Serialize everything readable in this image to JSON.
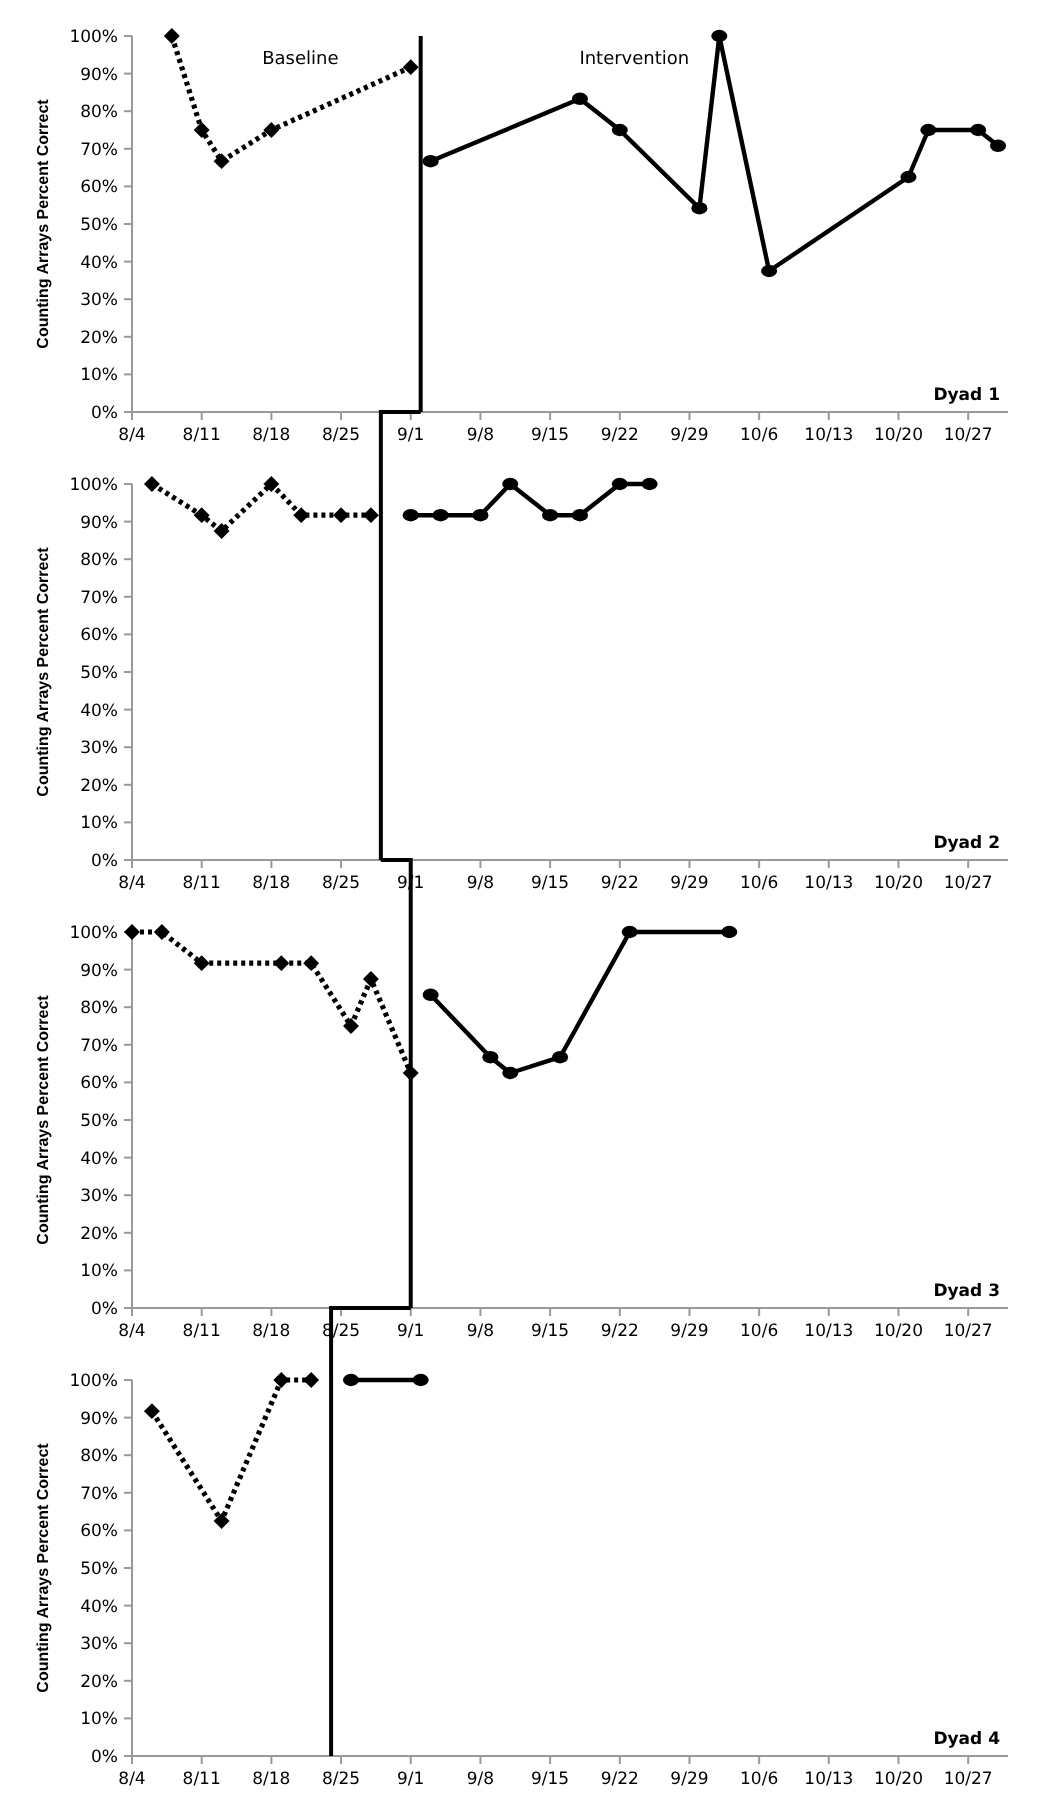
{
  "chart_data": [
    {
      "type": "line",
      "title": "Dyad 1",
      "ylabel": "Counting Arrays Percent Correct",
      "annotations": [
        "Baseline",
        "Intervention"
      ],
      "xlim": [
        "--08-04",
        "--10-31"
      ],
      "xticks": [
        {
          "value": "--08-04",
          "label": "8/4"
        },
        {
          "value": "--08-11",
          "label": "8/11"
        },
        {
          "value": "--08-18",
          "label": "8/18"
        },
        {
          "value": "--08-25",
          "label": "8/25"
        },
        {
          "value": "--09-01",
          "label": "9/1"
        },
        {
          "value": "--09-08",
          "label": "9/8"
        },
        {
          "value": "--09-15",
          "label": "9/15"
        },
        {
          "value": "--09-22",
          "label": "9/22"
        },
        {
          "value": "--09-29",
          "label": "9/29"
        },
        {
          "value": "--10-06",
          "label": "10/6"
        },
        {
          "value": "--10-13",
          "label": "10/13"
        },
        {
          "value": "--10-20",
          "label": "10/20"
        },
        {
          "value": "--10-27",
          "label": "10/27"
        }
      ],
      "ylim": [
        0,
        100
      ],
      "yticks": [
        {
          "value": 0,
          "label": "0%"
        },
        {
          "value": 10,
          "label": "10%"
        },
        {
          "value": 20,
          "label": "20%"
        },
        {
          "value": 30,
          "label": "30%"
        },
        {
          "value": 40,
          "label": "40%"
        },
        {
          "value": 50,
          "label": "50%"
        },
        {
          "value": 60,
          "label": "60%"
        },
        {
          "value": 70,
          "label": "70%"
        },
        {
          "value": 80,
          "label": "80%"
        },
        {
          "value": 90,
          "label": "90%"
        },
        {
          "value": 100,
          "label": "100%"
        }
      ],
      "ref_lines": [
        {
          "axis": "x",
          "value": "--09-02",
          "color": "#000000",
          "line_style": "solid"
        }
      ],
      "series": [
        {
          "color": "#000000",
          "line_style": "dotted",
          "marker": "diamond",
          "x": [
            "--08-08",
            "--08-11",
            "--08-13",
            "--08-18",
            "--09-01"
          ],
          "values": [
            100,
            75,
            66.7,
            75,
            91.7
          ]
        },
        {
          "color": "#000000",
          "line_style": "solid",
          "marker": "circle",
          "x": [
            "--09-03",
            "--09-18",
            "--09-22",
            "--09-30",
            "--10-02",
            "--10-07",
            "--10-21",
            "--10-23",
            "--10-28",
            "--10-30"
          ],
          "values": [
            66.7,
            83.3,
            75,
            54.2,
            100,
            37.5,
            62.5,
            75,
            75,
            70.8
          ]
        }
      ]
    },
    {
      "type": "line",
      "title": "Dyad 2",
      "ylabel": "Counting Arrays Percent Correct",
      "xlim": [
        "--08-04",
        "--10-31"
      ],
      "xticks": [
        {
          "value": "--08-04",
          "label": "8/4"
        },
        {
          "value": "--08-11",
          "label": "8/11"
        },
        {
          "value": "--08-18",
          "label": "8/18"
        },
        {
          "value": "--08-25",
          "label": "8/25"
        },
        {
          "value": "--09-01",
          "label": "9/1"
        },
        {
          "value": "--09-08",
          "label": "9/8"
        },
        {
          "value": "--09-15",
          "label": "9/15"
        },
        {
          "value": "--09-22",
          "label": "9/22"
        },
        {
          "value": "--09-29",
          "label": "9/29"
        },
        {
          "value": "--10-06",
          "label": "10/6"
        },
        {
          "value": "--10-13",
          "label": "10/13"
        },
        {
          "value": "--10-20",
          "label": "10/20"
        },
        {
          "value": "--10-27",
          "label": "10/27"
        }
      ],
      "ylim": [
        0,
        100
      ],
      "yticks": [
        {
          "value": 0,
          "label": "0%"
        },
        {
          "value": 10,
          "label": "10%"
        },
        {
          "value": 20,
          "label": "20%"
        },
        {
          "value": 30,
          "label": "30%"
        },
        {
          "value": 40,
          "label": "40%"
        },
        {
          "value": 50,
          "label": "50%"
        },
        {
          "value": 60,
          "label": "60%"
        },
        {
          "value": 70,
          "label": "70%"
        },
        {
          "value": 80,
          "label": "80%"
        },
        {
          "value": 90,
          "label": "90%"
        },
        {
          "value": 100,
          "label": "100%"
        }
      ],
      "ref_lines": [
        {
          "axis": "x",
          "value": "--08-29",
          "color": "#000000",
          "line_style": "solid"
        }
      ],
      "series": [
        {
          "color": "#000000",
          "line_style": "dotted",
          "marker": "diamond",
          "x": [
            "--08-06",
            "--08-11",
            "--08-13",
            "--08-18",
            "--08-21",
            "--08-25",
            "--08-28"
          ],
          "values": [
            100,
            91.7,
            87.5,
            100,
            91.7,
            91.7,
            91.7
          ]
        },
        {
          "color": "#000000",
          "line_style": "solid",
          "marker": "circle",
          "x": [
            "--09-01",
            "--09-04",
            "--09-08",
            "--09-11",
            "--09-15",
            "--09-18",
            "--09-22",
            "--09-25"
          ],
          "values": [
            91.7,
            91.7,
            91.7,
            100,
            91.7,
            91.7,
            100,
            100
          ]
        }
      ]
    },
    {
      "type": "line",
      "title": "Dyad 3",
      "ylabel": "Counting Arrays Percent Correct",
      "xlim": [
        "--08-04",
        "--10-31"
      ],
      "xticks": [
        {
          "value": "--08-04",
          "label": "8/4"
        },
        {
          "value": "--08-11",
          "label": "8/11"
        },
        {
          "value": "--08-18",
          "label": "8/18"
        },
        {
          "value": "--08-25",
          "label": "8/25"
        },
        {
          "value": "--09-01",
          "label": "9/1"
        },
        {
          "value": "--09-08",
          "label": "9/8"
        },
        {
          "value": "--09-15",
          "label": "9/15"
        },
        {
          "value": "--09-22",
          "label": "9/22"
        },
        {
          "value": "--09-29",
          "label": "9/29"
        },
        {
          "value": "--10-06",
          "label": "10/6"
        },
        {
          "value": "--10-13",
          "label": "10/13"
        },
        {
          "value": "--10-20",
          "label": "10/20"
        },
        {
          "value": "--10-27",
          "label": "10/27"
        }
      ],
      "ylim": [
        0,
        100
      ],
      "yticks": [
        {
          "value": 0,
          "label": "0%"
        },
        {
          "value": 10,
          "label": "10%"
        },
        {
          "value": 20,
          "label": "20%"
        },
        {
          "value": 30,
          "label": "30%"
        },
        {
          "value": 40,
          "label": "40%"
        },
        {
          "value": 50,
          "label": "50%"
        },
        {
          "value": 60,
          "label": "60%"
        },
        {
          "value": 70,
          "label": "70%"
        },
        {
          "value": 80,
          "label": "80%"
        },
        {
          "value": 90,
          "label": "90%"
        },
        {
          "value": 100,
          "label": "100%"
        }
      ],
      "ref_lines": [
        {
          "axis": "x",
          "value": "--09-01",
          "color": "#000000",
          "line_style": "solid"
        }
      ],
      "series": [
        {
          "color": "#000000",
          "line_style": "dotted",
          "marker": "diamond",
          "x": [
            "--08-04",
            "--08-07",
            "--08-11",
            "--08-19",
            "--08-22",
            "--08-26",
            "--08-28",
            "--09-01"
          ],
          "values": [
            100,
            100,
            91.7,
            91.7,
            91.7,
            75,
            87.5,
            62.5
          ]
        },
        {
          "color": "#000000",
          "line_style": "solid",
          "marker": "circle",
          "x": [
            "--09-03",
            "--09-09",
            "--09-11",
            "--09-16",
            "--09-23",
            "--10-03"
          ],
          "values": [
            83.3,
            66.7,
            62.5,
            66.7,
            100,
            100
          ]
        }
      ]
    },
    {
      "type": "line",
      "title": "Dyad 4",
      "ylabel": "Counting Arrays Percent Correct",
      "xlim": [
        "--08-04",
        "--10-31"
      ],
      "xticks": [
        {
          "value": "--08-04",
          "label": "8/4"
        },
        {
          "value": "--08-11",
          "label": "8/11"
        },
        {
          "value": "--08-18",
          "label": "8/18"
        },
        {
          "value": "--08-25",
          "label": "8/25"
        },
        {
          "value": "--09-01",
          "label": "9/1"
        },
        {
          "value": "--09-08",
          "label": "9/8"
        },
        {
          "value": "--09-15",
          "label": "9/15"
        },
        {
          "value": "--09-22",
          "label": "9/22"
        },
        {
          "value": "--09-29",
          "label": "9/29"
        },
        {
          "value": "--10-06",
          "label": "10/6"
        },
        {
          "value": "--10-13",
          "label": "10/13"
        },
        {
          "value": "--10-20",
          "label": "10/20"
        },
        {
          "value": "--10-27",
          "label": "10/27"
        }
      ],
      "ylim": [
        0,
        100
      ],
      "yticks": [
        {
          "value": 0,
          "label": "0%"
        },
        {
          "value": 10,
          "label": "10%"
        },
        {
          "value": 20,
          "label": "20%"
        },
        {
          "value": 30,
          "label": "30%"
        },
        {
          "value": 40,
          "label": "40%"
        },
        {
          "value": 50,
          "label": "50%"
        },
        {
          "value": 60,
          "label": "60%"
        },
        {
          "value": 70,
          "label": "70%"
        },
        {
          "value": 80,
          "label": "80%"
        },
        {
          "value": 90,
          "label": "90%"
        },
        {
          "value": 100,
          "label": "100%"
        }
      ],
      "ref_lines": [
        {
          "axis": "x",
          "value": "--08-24",
          "color": "#000000",
          "line_style": "solid"
        }
      ],
      "series": [
        {
          "color": "#000000",
          "line_style": "dotted",
          "marker": "diamond",
          "x": [
            "--08-06",
            "--08-13",
            "--08-19",
            "--08-22"
          ],
          "values": [
            91.7,
            62.5,
            100,
            100
          ]
        },
        {
          "color": "#000000",
          "line_style": "solid",
          "marker": "circle",
          "x": [
            "--08-26",
            "--09-02"
          ],
          "values": [
            100,
            100
          ]
        }
      ]
    }
  ]
}
